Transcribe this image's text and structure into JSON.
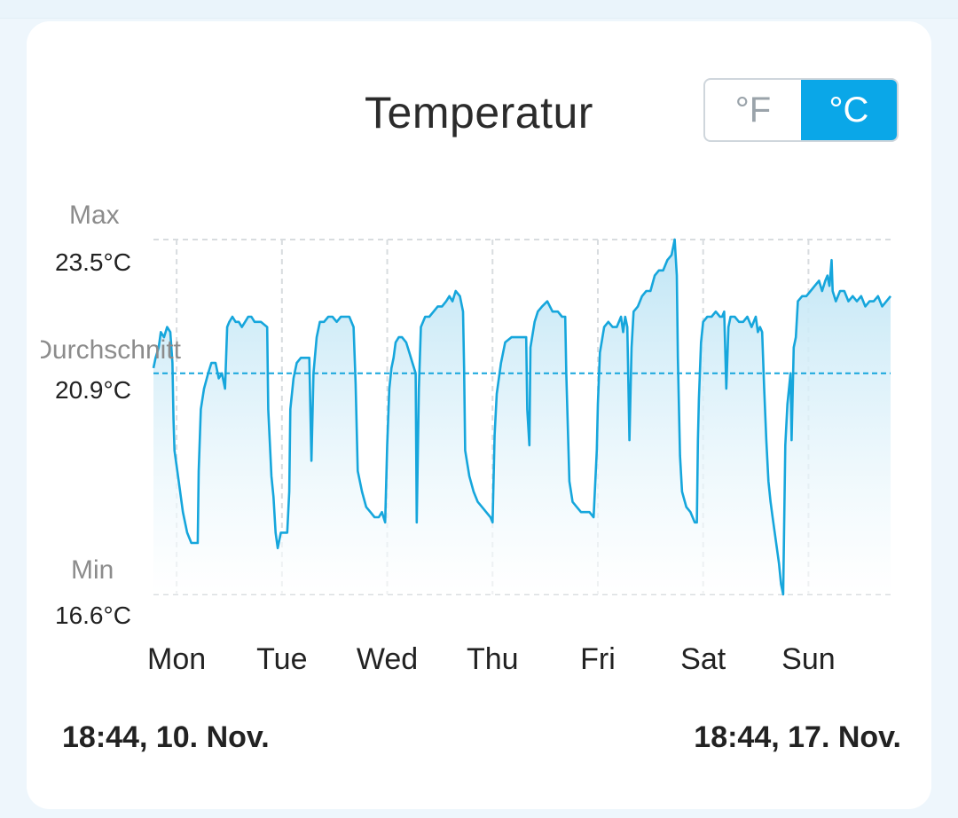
{
  "title": "Temperatur",
  "unit_toggle": {
    "options": [
      "°F",
      "°C"
    ],
    "selected": "°C"
  },
  "axis_labels": {
    "max_label": "Max",
    "max_value": "23.5°C",
    "avg_label": "Durchschnitt",
    "avg_value": "20.9°C",
    "min_label": "Min",
    "min_value": "16.6°C"
  },
  "range": {
    "start": "18:44,  10. Nov.",
    "end": "18:44,  17. Nov."
  },
  "colors": {
    "line": "#16a6dc",
    "fill_top": "#bfe5f5",
    "accent": "#0aa7e8"
  },
  "chart_data": {
    "type": "area",
    "title": "Temperatur",
    "x_unit": "days since 18:44, 10. Nov.",
    "y_unit": "°C",
    "xlim": [
      0,
      7
    ],
    "ylim": [
      16.6,
      23.5
    ],
    "average": 20.9,
    "gridlines": {
      "vertical": true,
      "horizontal": [
        "max",
        "min"
      ],
      "style": "dashed"
    },
    "x_tick_labels": [
      "Mon",
      "Tue",
      "Wed",
      "Thu",
      "Fri",
      "Sat",
      "Sun"
    ],
    "x_ticks": [
      0.22,
      1.22,
      2.22,
      3.22,
      4.22,
      5.22,
      6.22
    ],
    "series": [
      {
        "name": "Temperatur",
        "points": [
          [
            0.0,
            21.0
          ],
          [
            0.02,
            21.2
          ],
          [
            0.05,
            21.4
          ],
          [
            0.07,
            21.7
          ],
          [
            0.1,
            21.6
          ],
          [
            0.13,
            21.8
          ],
          [
            0.16,
            21.7
          ],
          [
            0.18,
            21.1
          ],
          [
            0.19,
            20.0
          ],
          [
            0.2,
            19.4
          ],
          [
            0.24,
            18.8
          ],
          [
            0.28,
            18.2
          ],
          [
            0.32,
            17.8
          ],
          [
            0.36,
            17.6
          ],
          [
            0.4,
            17.6
          ],
          [
            0.42,
            17.6
          ],
          [
            0.43,
            19.0
          ],
          [
            0.45,
            20.2
          ],
          [
            0.48,
            20.6
          ],
          [
            0.52,
            20.9
          ],
          [
            0.55,
            21.1
          ],
          [
            0.59,
            21.1
          ],
          [
            0.62,
            20.8
          ],
          [
            0.65,
            20.9
          ],
          [
            0.68,
            20.6
          ],
          [
            0.7,
            21.8
          ],
          [
            0.72,
            21.9
          ],
          [
            0.75,
            22.0
          ],
          [
            0.78,
            21.9
          ],
          [
            0.81,
            21.9
          ],
          [
            0.84,
            21.8
          ],
          [
            0.87,
            21.9
          ],
          [
            0.9,
            22.0
          ],
          [
            0.93,
            22.0
          ],
          [
            0.96,
            21.9
          ],
          [
            1.02,
            21.9
          ],
          [
            1.08,
            21.8
          ],
          [
            1.09,
            20.2
          ],
          [
            1.12,
            18.9
          ],
          [
            1.14,
            18.5
          ],
          [
            1.16,
            17.8
          ],
          [
            1.18,
            17.5
          ],
          [
            1.21,
            17.8
          ],
          [
            1.24,
            17.8
          ],
          [
            1.27,
            17.8
          ],
          [
            1.29,
            18.6
          ],
          [
            1.3,
            20.2
          ],
          [
            1.33,
            20.8
          ],
          [
            1.36,
            21.1
          ],
          [
            1.4,
            21.2
          ],
          [
            1.44,
            21.2
          ],
          [
            1.48,
            21.2
          ],
          [
            1.5,
            19.2
          ],
          [
            1.52,
            20.9
          ],
          [
            1.55,
            21.6
          ],
          [
            1.58,
            21.9
          ],
          [
            1.62,
            21.9
          ],
          [
            1.66,
            22.0
          ],
          [
            1.7,
            22.0
          ],
          [
            1.74,
            21.9
          ],
          [
            1.78,
            22.0
          ],
          [
            1.82,
            22.0
          ],
          [
            1.86,
            22.0
          ],
          [
            1.9,
            21.8
          ],
          [
            1.92,
            20.7
          ],
          [
            1.94,
            19.0
          ],
          [
            1.98,
            18.6
          ],
          [
            2.02,
            18.3
          ],
          [
            2.06,
            18.2
          ],
          [
            2.1,
            18.1
          ],
          [
            2.14,
            18.1
          ],
          [
            2.17,
            18.2
          ],
          [
            2.2,
            18.0
          ],
          [
            2.22,
            19.5
          ],
          [
            2.24,
            20.6
          ],
          [
            2.26,
            21.0
          ],
          [
            2.28,
            21.2
          ],
          [
            2.3,
            21.5
          ],
          [
            2.33,
            21.6
          ],
          [
            2.36,
            21.6
          ],
          [
            2.4,
            21.5
          ],
          [
            2.43,
            21.3
          ],
          [
            2.46,
            21.1
          ],
          [
            2.49,
            20.9
          ],
          [
            2.5,
            18.0
          ],
          [
            2.52,
            20.6
          ],
          [
            2.54,
            21.8
          ],
          [
            2.58,
            22.0
          ],
          [
            2.62,
            22.0
          ],
          [
            2.66,
            22.1
          ],
          [
            2.7,
            22.2
          ],
          [
            2.74,
            22.2
          ],
          [
            2.78,
            22.3
          ],
          [
            2.81,
            22.4
          ],
          [
            2.84,
            22.3
          ],
          [
            2.87,
            22.5
          ],
          [
            2.91,
            22.4
          ],
          [
            2.94,
            22.1
          ],
          [
            2.95,
            21.0
          ],
          [
            2.96,
            19.4
          ],
          [
            3.0,
            18.9
          ],
          [
            3.04,
            18.6
          ],
          [
            3.08,
            18.4
          ],
          [
            3.12,
            18.3
          ],
          [
            3.16,
            18.2
          ],
          [
            3.2,
            18.1
          ],
          [
            3.22,
            18.0
          ],
          [
            3.24,
            19.7
          ],
          [
            3.26,
            20.5
          ],
          [
            3.3,
            21.1
          ],
          [
            3.34,
            21.5
          ],
          [
            3.4,
            21.6
          ],
          [
            3.46,
            21.6
          ],
          [
            3.5,
            21.6
          ],
          [
            3.54,
            21.6
          ],
          [
            3.55,
            20.2
          ],
          [
            3.57,
            19.5
          ],
          [
            3.58,
            21.4
          ],
          [
            3.62,
            21.9
          ],
          [
            3.65,
            22.1
          ],
          [
            3.69,
            22.2
          ],
          [
            3.74,
            22.3
          ],
          [
            3.79,
            22.1
          ],
          [
            3.84,
            22.1
          ],
          [
            3.88,
            22.0
          ],
          [
            3.91,
            22.0
          ],
          [
            3.92,
            20.9
          ],
          [
            3.95,
            18.8
          ],
          [
            3.98,
            18.4
          ],
          [
            4.02,
            18.3
          ],
          [
            4.06,
            18.2
          ],
          [
            4.1,
            18.2
          ],
          [
            4.14,
            18.2
          ],
          [
            4.18,
            18.1
          ],
          [
            4.21,
            19.4
          ],
          [
            4.22,
            20.3
          ],
          [
            4.24,
            21.3
          ],
          [
            4.28,
            21.8
          ],
          [
            4.32,
            21.9
          ],
          [
            4.36,
            21.8
          ],
          [
            4.4,
            21.8
          ],
          [
            4.44,
            22.0
          ],
          [
            4.46,
            21.7
          ],
          [
            4.48,
            22.0
          ],
          [
            4.5,
            21.8
          ],
          [
            4.52,
            19.6
          ],
          [
            4.54,
            21.4
          ],
          [
            4.56,
            22.1
          ],
          [
            4.6,
            22.2
          ],
          [
            4.64,
            22.4
          ],
          [
            4.68,
            22.5
          ],
          [
            4.72,
            22.5
          ],
          [
            4.76,
            22.8
          ],
          [
            4.8,
            22.9
          ],
          [
            4.84,
            22.9
          ],
          [
            4.88,
            23.1
          ],
          [
            4.92,
            23.2
          ],
          [
            4.95,
            23.5
          ],
          [
            4.97,
            22.8
          ],
          [
            4.98,
            21.2
          ],
          [
            5.0,
            19.3
          ],
          [
            5.02,
            18.6
          ],
          [
            5.06,
            18.3
          ],
          [
            5.1,
            18.2
          ],
          [
            5.14,
            18.0
          ],
          [
            5.16,
            18.0
          ],
          [
            5.17,
            19.6
          ],
          [
            5.18,
            20.4
          ],
          [
            5.2,
            21.5
          ],
          [
            5.22,
            21.9
          ],
          [
            5.26,
            22.0
          ],
          [
            5.3,
            22.0
          ],
          [
            5.34,
            22.1
          ],
          [
            5.38,
            22.0
          ],
          [
            5.4,
            22.0
          ],
          [
            5.42,
            22.1
          ],
          [
            5.44,
            20.6
          ],
          [
            5.46,
            21.8
          ],
          [
            5.48,
            22.0
          ],
          [
            5.52,
            22.0
          ],
          [
            5.56,
            21.9
          ],
          [
            5.6,
            21.9
          ],
          [
            5.64,
            22.0
          ],
          [
            5.68,
            21.8
          ],
          [
            5.72,
            22.0
          ],
          [
            5.74,
            21.7
          ],
          [
            5.76,
            21.8
          ],
          [
            5.78,
            21.7
          ],
          [
            5.8,
            20.6
          ],
          [
            5.82,
            19.6
          ],
          [
            5.84,
            18.8
          ],
          [
            5.86,
            18.4
          ],
          [
            5.88,
            18.1
          ],
          [
            5.9,
            17.8
          ],
          [
            5.92,
            17.5
          ],
          [
            5.94,
            17.2
          ],
          [
            5.96,
            16.8
          ],
          [
            5.98,
            16.6
          ],
          [
            6.0,
            19.5
          ],
          [
            6.02,
            20.3
          ],
          [
            6.05,
            20.9
          ],
          [
            6.06,
            19.6
          ],
          [
            6.08,
            21.4
          ],
          [
            6.1,
            21.6
          ],
          [
            6.12,
            22.3
          ],
          [
            6.16,
            22.4
          ],
          [
            6.2,
            22.4
          ],
          [
            6.24,
            22.5
          ],
          [
            6.28,
            22.6
          ],
          [
            6.32,
            22.7
          ],
          [
            6.35,
            22.5
          ],
          [
            6.38,
            22.7
          ],
          [
            6.4,
            22.8
          ],
          [
            6.42,
            22.6
          ],
          [
            6.44,
            23.1
          ],
          [
            6.45,
            22.5
          ],
          [
            6.48,
            22.3
          ],
          [
            6.52,
            22.5
          ],
          [
            6.56,
            22.5
          ],
          [
            6.6,
            22.3
          ],
          [
            6.64,
            22.4
          ],
          [
            6.68,
            22.3
          ],
          [
            6.72,
            22.4
          ],
          [
            6.76,
            22.2
          ],
          [
            6.8,
            22.3
          ],
          [
            6.84,
            22.3
          ],
          [
            6.88,
            22.4
          ],
          [
            6.92,
            22.2
          ],
          [
            6.96,
            22.3
          ],
          [
            7.0,
            22.4
          ]
        ]
      }
    ]
  }
}
